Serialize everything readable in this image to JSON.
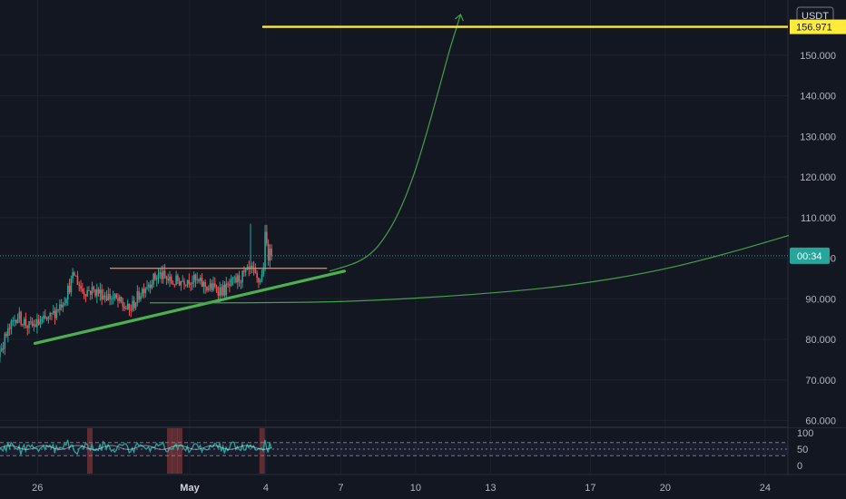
{
  "chart_data": {
    "type": "candlestick",
    "currency": "USDT",
    "price_axis": {
      "range": [
        57,
        160
      ],
      "ticks": [
        "60.000",
        "70.000",
        "80.000",
        "90.000",
        "100.000",
        "110.000",
        "120.000",
        "130.000",
        "140.000",
        "150.000"
      ]
    },
    "date_axis": {
      "labels": [
        "26",
        "May",
        "4",
        "7",
        "10",
        "13",
        "17",
        "20",
        "24"
      ]
    },
    "current_price_tag": "00:34",
    "current_price": 100.6,
    "target_price_tag": "156.971",
    "target_price": 156.97,
    "candles": {
      "start_day": -10.3,
      "day_span": 13.6,
      "count": 210,
      "waypoints": [
        [
          -10.3,
          120
        ],
        [
          -10.15,
          88
        ],
        [
          -9.8,
          83
        ],
        [
          -9.3,
          87
        ],
        [
          -8.8,
          82
        ],
        [
          -8.2,
          80
        ],
        [
          -7.8,
          74
        ],
        [
          -7.4,
          80
        ],
        [
          -6.9,
          86
        ],
        [
          -6.4,
          83
        ],
        [
          -5.6,
          85
        ],
        [
          -5.0,
          90
        ],
        [
          -4.6,
          96
        ],
        [
          -4.3,
          92
        ],
        [
          -3.8,
          92
        ],
        [
          -3.0,
          90
        ],
        [
          -2.4,
          87
        ],
        [
          -1.8,
          93
        ],
        [
          -1.2,
          96
        ],
        [
          -0.7,
          94
        ],
        [
          0.0,
          95
        ],
        [
          0.7,
          93
        ],
        [
          1.4,
          92
        ],
        [
          2.0,
          95
        ],
        [
          2.5,
          97
        ],
        [
          2.75,
          94
        ],
        [
          2.95,
          96
        ],
        [
          3.05,
          106
        ],
        [
          3.15,
          101
        ],
        [
          3.4,
          100.6
        ]
      ],
      "min_low": 71,
      "max_high": 108.5,
      "red_highlight_days": [
        -8.3,
        -7.9,
        -4.0,
        -0.8,
        -0.6,
        -0.4,
        2.9
      ]
    },
    "annotations": {
      "target_line_price": 156.97,
      "resistance_line": {
        "from": [
          -3.2,
          97.5
        ],
        "to": [
          5.5,
          97.5
        ]
      },
      "trendline": {
        "from": [
          -6.2,
          79
        ],
        "to": [
          6.2,
          96.8
        ]
      },
      "bullish_arc_points": [
        [
          5.6,
          96.8
        ],
        [
          6.7,
          99
        ],
        [
          7.4,
          102
        ],
        [
          8.0,
          107
        ],
        [
          8.5,
          113
        ],
        [
          9.0,
          121
        ],
        [
          9.5,
          131
        ],
        [
          10.0,
          142
        ],
        [
          10.4,
          151
        ],
        [
          10.7,
          157
        ],
        [
          10.85,
          160
        ]
      ],
      "slow_arc_points": [
        [
          -1.6,
          89
        ],
        [
          2,
          89
        ],
        [
          6,
          89.3
        ],
        [
          10,
          90.5
        ],
        [
          14,
          92.5
        ],
        [
          17,
          95
        ],
        [
          19.5,
          98
        ],
        [
          22,
          102
        ],
        [
          24.5,
          106.5
        ],
        [
          25.6,
          108.5
        ]
      ]
    },
    "oscillator": {
      "range": [
        0,
        100
      ],
      "ticks": [
        "100",
        "50",
        "0"
      ],
      "upper_level": 70,
      "lower_level": 30,
      "period": 70
    }
  }
}
